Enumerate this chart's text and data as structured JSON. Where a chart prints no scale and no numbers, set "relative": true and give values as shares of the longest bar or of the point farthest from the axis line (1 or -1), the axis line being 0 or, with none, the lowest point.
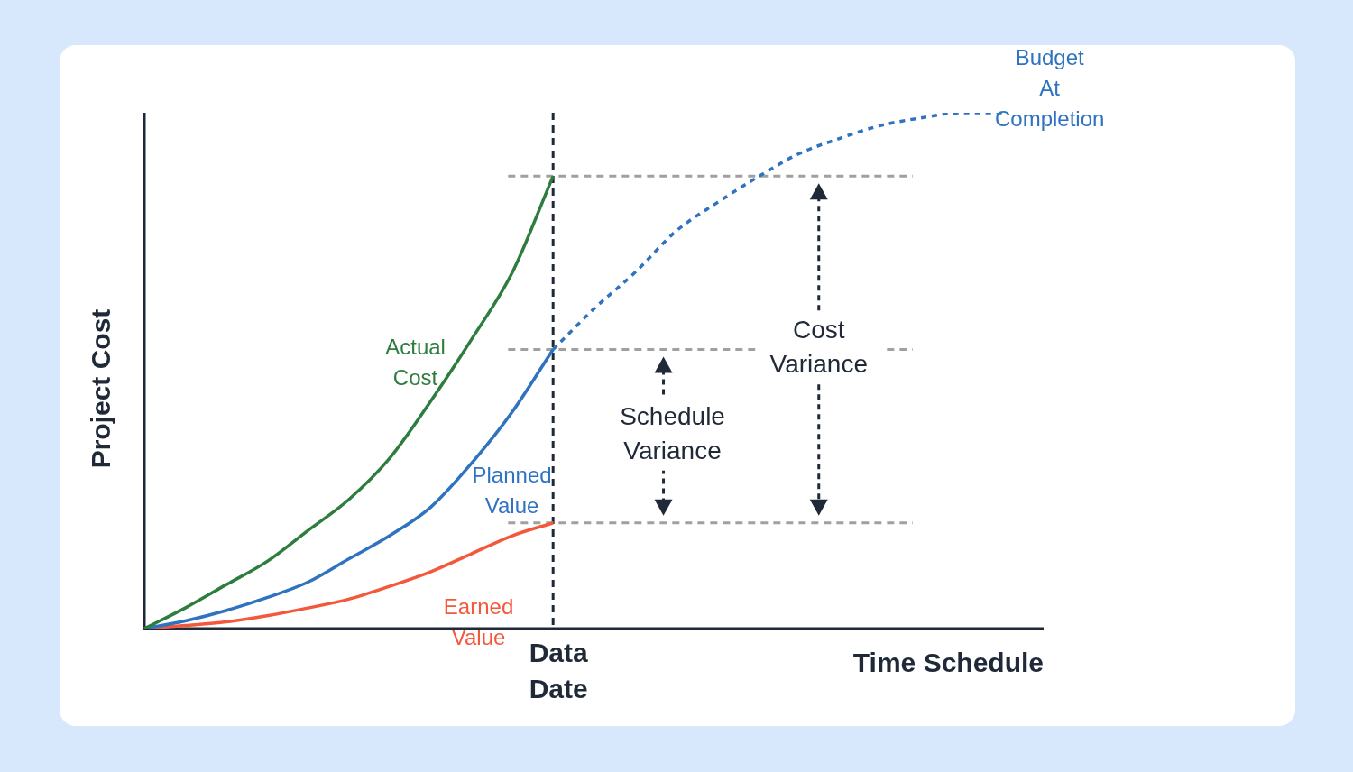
{
  "chart_data": {
    "type": "line",
    "relative": true,
    "xlabel": "Time Schedule",
    "ylabel": "Project Cost",
    "legend": false,
    "categories": [
      null,
      null,
      null,
      null,
      null,
      null,
      null,
      null,
      null,
      null,
      null,
      null,
      null,
      null,
      null,
      null,
      null,
      null,
      null,
      null,
      null,
      null,
      null
    ],
    "series": [
      {
        "name": "Actual Cost",
        "color": "#2e7d3e",
        "values": [
          0,
          0.04,
          0.085,
          0.13,
          0.19,
          0.25,
          0.33,
          0.44,
          0.56,
          0.69,
          0.877,
          null,
          null,
          null,
          null,
          null,
          null,
          null,
          null,
          null,
          null,
          null,
          null
        ]
      },
      {
        "name": "Planned Value",
        "color": "#2f73c0",
        "values": [
          0,
          0.015,
          0.035,
          0.06,
          0.09,
          0.135,
          0.18,
          0.235,
          0.32,
          0.42,
          0.541,
          null,
          null,
          null,
          null,
          null,
          null,
          null,
          null,
          null,
          null,
          null,
          null
        ]
      },
      {
        "name": "Earned Value",
        "color": "#f4583a",
        "values": [
          0,
          0.006,
          0.013,
          0.025,
          0.04,
          0.057,
          0.082,
          0.11,
          0.145,
          0.18,
          0.205,
          null,
          null,
          null,
          null,
          null,
          null,
          null,
          null,
          null,
          null,
          null,
          null
        ]
      },
      {
        "name": "Budget At Completion",
        "color": "#2f73c0",
        "line_style": "dotted",
        "values": [
          null,
          null,
          null,
          null,
          null,
          null,
          null,
          null,
          null,
          null,
          0.541,
          0.62,
          0.69,
          0.77,
          0.825,
          0.875,
          0.92,
          0.95,
          0.975,
          0.99,
          1.0,
          1.0,
          null
        ]
      }
    ],
    "ref_lines": [
      {
        "axis": "y",
        "value": 0.877,
        "color": "#a0a0a0",
        "line_style": "dashed"
      },
      {
        "axis": "y",
        "value": 0.541,
        "color": "#a0a0a0",
        "line_style": "dashed"
      },
      {
        "axis": "y",
        "value": 0.205,
        "color": "#a0a0a0",
        "line_style": "dashed"
      }
    ],
    "annotations": [
      "Data Date",
      "Schedule Variance",
      "Cost Variance"
    ]
  }
}
